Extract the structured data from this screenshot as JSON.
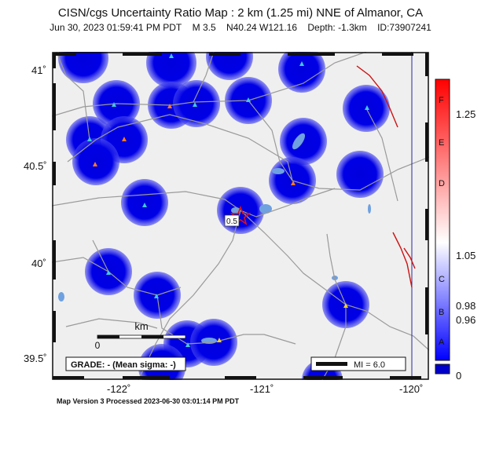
{
  "header": {
    "title": "CISN/cgs Uncertainty Ratio Map : 2 km (1.25 mi) NNE of Almanor, CA",
    "date": "Jun 30, 2023 01:59:41 PM PDT",
    "magnitude": "M 3.5",
    "location": "N40.24 W121.16",
    "depth": "Depth: -1.3km",
    "event_id": "ID:73907241"
  },
  "axes": {
    "lat_labels": [
      "41˚",
      "40.5˚",
      "40˚",
      "39.5˚"
    ],
    "lon_labels": [
      "-122˚",
      "-121˚",
      "-120˚"
    ]
  },
  "scale_bar": {
    "unit": "km",
    "zero": "0"
  },
  "grade_box": {
    "text": "GRADE: - (Mean sigma: -)"
  },
  "mi_legend": {
    "text": "MI = 6.0"
  },
  "epicenter_label": "0.5",
  "colorbar": {
    "letters": [
      "F",
      "E",
      "D",
      "C",
      "B",
      "A"
    ],
    "values": [
      "1.25",
      "1.05",
      "0.98",
      "0.96",
      "0"
    ],
    "colors": {
      "high": "#ff0000",
      "mid": "#ffffff",
      "low": "#0000ff",
      "zero": "#0000cc"
    }
  },
  "footer": "Map Version 3 Processed 2023-06-30 03:01:14 PM PDT",
  "stations_colors": {
    "cyan": "#40c8e0",
    "orange": "#ff7a20",
    "yellow": "#f2d020"
  }
}
